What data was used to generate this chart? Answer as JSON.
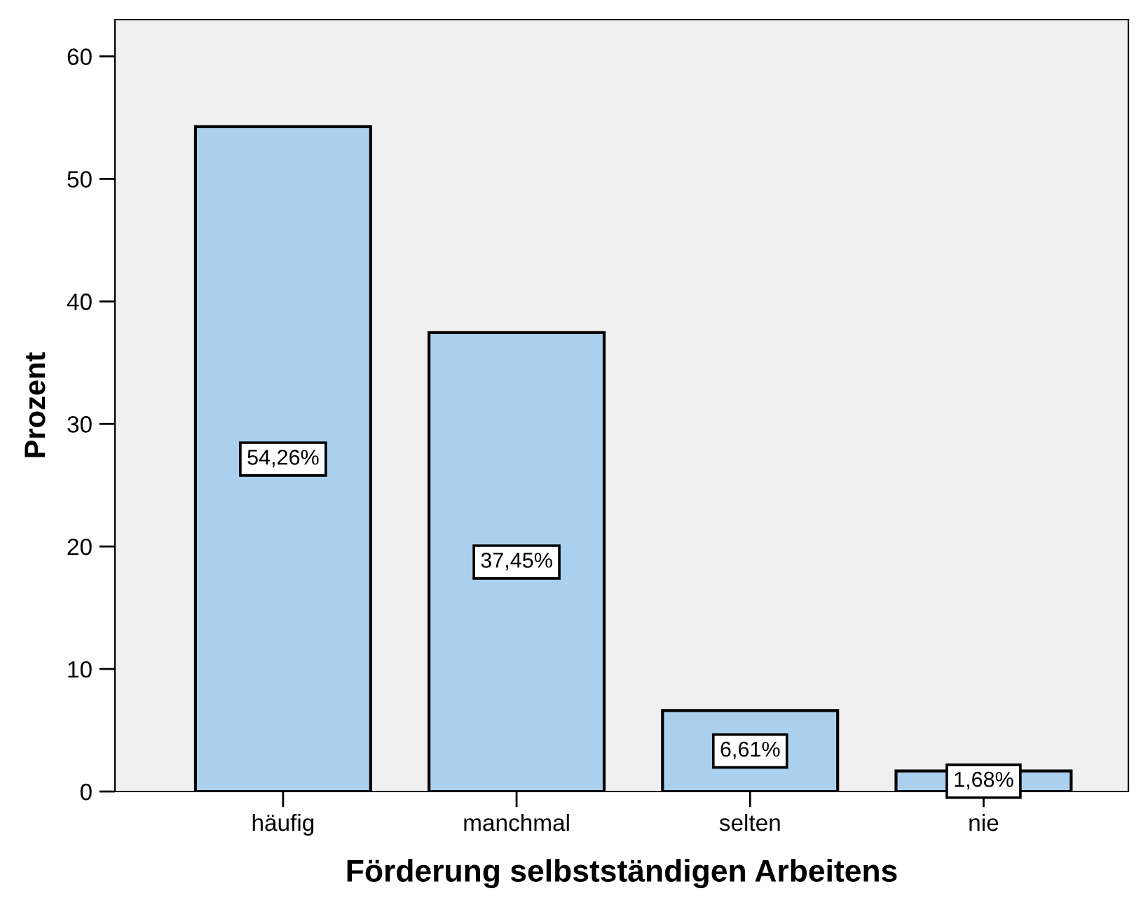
{
  "chart_data": {
    "type": "bar",
    "xlabel": "Förderung selbstständigen Arbeitens",
    "ylabel": "Prozent",
    "categories": [
      "häufig",
      "manchmal",
      "selten",
      "nie"
    ],
    "values": [
      54.26,
      37.45,
      6.61,
      1.68
    ],
    "value_labels": [
      "54,26%",
      "37,45%",
      "6,61%",
      "1,68%"
    ],
    "color": "#abd0ee",
    "ylim": [
      0,
      63
    ],
    "yticks": [
      0,
      10,
      20,
      30,
      40,
      50,
      60
    ],
    "grid": false
  }
}
